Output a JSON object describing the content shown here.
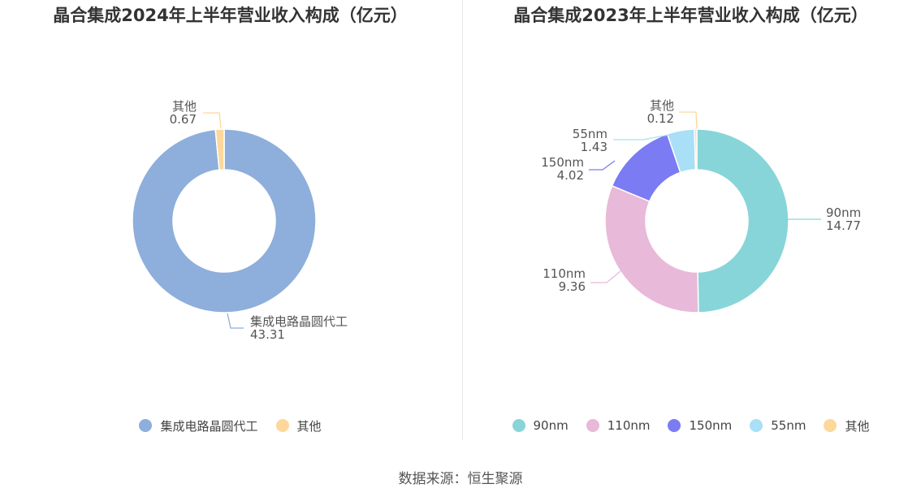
{
  "chart_data": [
    {
      "type": "pie",
      "title": "晶合集成2024年上半年营业收入构成（亿元）",
      "categories": [
        "集成电路晶圆代工",
        "其他"
      ],
      "values": [
        43.31,
        0.67
      ],
      "value_labels": [
        "43.31",
        "0.67"
      ],
      "colors": [
        "#8eaedb",
        "#fdd89a"
      ],
      "legend_position": "bottom"
    },
    {
      "type": "pie",
      "title": "晶合集成2023年上半年营业收入构成（亿元）",
      "categories": [
        "90nm",
        "110nm",
        "150nm",
        "55nm",
        "其他"
      ],
      "values": [
        14.77,
        9.36,
        4.02,
        1.43,
        0.12
      ],
      "value_labels": [
        "14.77",
        "9.36",
        "4.02",
        "1.43",
        "0.12"
      ],
      "colors": [
        "#88d5d9",
        "#e8b9d8",
        "#7b7bf3",
        "#a9dff7",
        "#fdd89a"
      ],
      "legend_position": "bottom"
    }
  ],
  "source": "数据来源：恒生聚源"
}
